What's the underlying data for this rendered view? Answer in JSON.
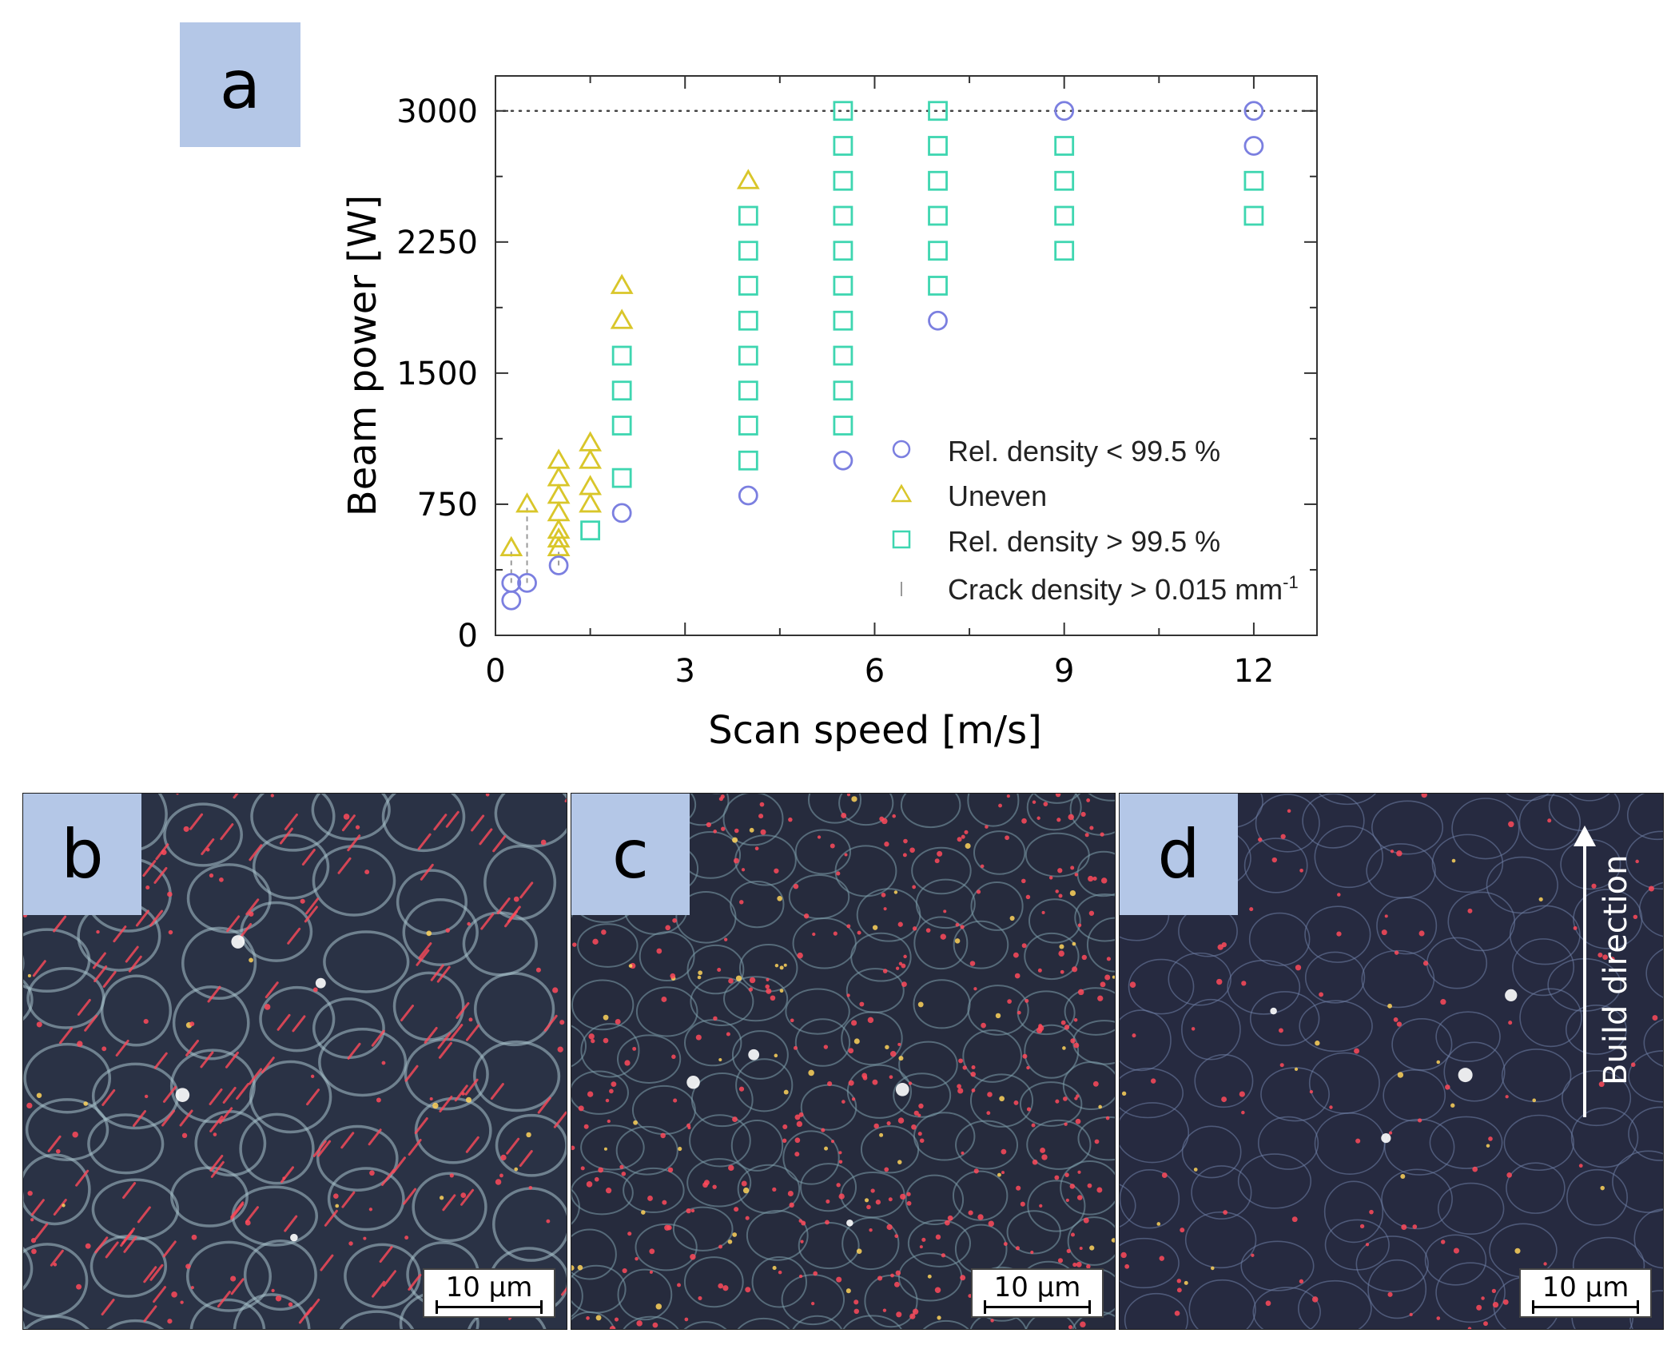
{
  "panels": {
    "a": "a",
    "b": "b",
    "c": "c",
    "d": "d"
  },
  "scale_bar": "10 µm",
  "build_direction": "Build direction",
  "colors": {
    "label_bg": "#b4c7e7",
    "circle": "#7b7fe0",
    "triangle": "#d9c62a",
    "square": "#3ed6b0",
    "crack": "#999999"
  },
  "chart_data": {
    "type": "scatter",
    "xlabel": "Scan speed [m/s]",
    "ylabel": "Beam power [W]",
    "xlim": [
      0,
      13
    ],
    "ylim": [
      0,
      3200
    ],
    "xticks": [
      0,
      3,
      6,
      9,
      12
    ],
    "yticks": [
      0,
      750,
      1500,
      2250,
      3000
    ],
    "reference_line": {
      "y": 3000,
      "style": "dotted"
    },
    "series": [
      {
        "name": "Rel. density < 99.5 %",
        "marker": "circle",
        "points": [
          [
            0.25,
            200
          ],
          [
            0.25,
            300
          ],
          [
            0.5,
            300
          ],
          [
            1,
            400
          ],
          [
            2,
            700
          ],
          [
            4,
            800
          ],
          [
            5.5,
            1000
          ],
          [
            7,
            1800
          ],
          [
            9,
            3000
          ],
          [
            12,
            2800
          ],
          [
            12,
            3000
          ]
        ]
      },
      {
        "name": "Uneven",
        "marker": "triangle",
        "points": [
          [
            0.25,
            500
          ],
          [
            0.5,
            750
          ],
          [
            1,
            500
          ],
          [
            1,
            550
          ],
          [
            1,
            600
          ],
          [
            1,
            700
          ],
          [
            1,
            800
          ],
          [
            1,
            900
          ],
          [
            1,
            1000
          ],
          [
            1.5,
            750
          ],
          [
            1.5,
            850
          ],
          [
            1.5,
            1000
          ],
          [
            1.5,
            1100
          ],
          [
            2,
            1800
          ],
          [
            2,
            2000
          ],
          [
            4,
            2600
          ]
        ]
      },
      {
        "name": "Rel. density > 99.5 %",
        "marker": "square",
        "points": [
          [
            1.5,
            600
          ],
          [
            2,
            900
          ],
          [
            2,
            1200
          ],
          [
            2,
            1400
          ],
          [
            2,
            1600
          ],
          [
            4,
            1000
          ],
          [
            4,
            1200
          ],
          [
            4,
            1400
          ],
          [
            4,
            1600
          ],
          [
            4,
            1800
          ],
          [
            4,
            2000
          ],
          [
            4,
            2200
          ],
          [
            4,
            2400
          ],
          [
            5.5,
            1200
          ],
          [
            5.5,
            1400
          ],
          [
            5.5,
            1600
          ],
          [
            5.5,
            1800
          ],
          [
            5.5,
            2000
          ],
          [
            5.5,
            2200
          ],
          [
            5.5,
            2400
          ],
          [
            5.5,
            2600
          ],
          [
            5.5,
            2800
          ],
          [
            5.5,
            3000
          ],
          [
            7,
            2000
          ],
          [
            7,
            2200
          ],
          [
            7,
            2400
          ],
          [
            7,
            2600
          ],
          [
            7,
            2800
          ],
          [
            7,
            3000
          ],
          [
            9,
            2200
          ],
          [
            9,
            2400
          ],
          [
            9,
            2600
          ],
          [
            9,
            2800
          ],
          [
            12,
            2400
          ],
          [
            12,
            2600
          ]
        ]
      },
      {
        "name": "Crack density > 0.015 mm",
        "name_superscript": "-1",
        "marker": "vline",
        "segments": [
          [
            0.25,
            300,
            500
          ],
          [
            0.5,
            300,
            750
          ],
          [
            1,
            400,
            500
          ]
        ]
      }
    ]
  }
}
